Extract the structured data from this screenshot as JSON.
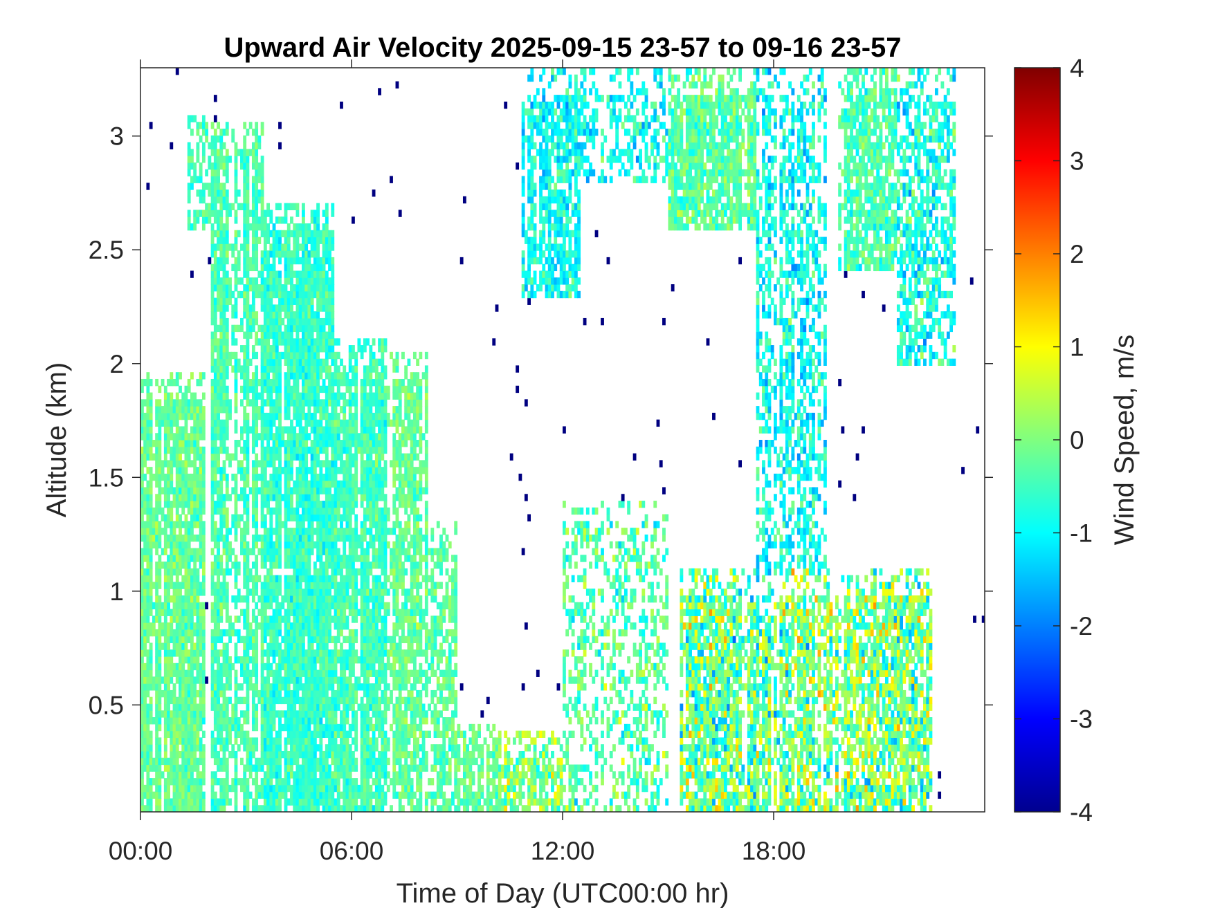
{
  "chart_data": {
    "type": "heatmap",
    "title": "Upward Air Velocity 2025-09-15 23-57 to 09-16 23-57",
    "xlabel": "Time of Day (UTC00:00 hr)",
    "ylabel": "Altitude (km)",
    "colorbar_label": "Wind Speed, m/s",
    "x_unit": "hours",
    "xlim": [
      0,
      24
    ],
    "ylim": [
      0.03,
      3.3
    ],
    "clim": [
      -4,
      4
    ],
    "colormap": "jet",
    "x_ticks": [
      {
        "value": 0,
        "label": "00:00"
      },
      {
        "value": 6,
        "label": "06:00"
      },
      {
        "value": 12,
        "label": "12:00"
      },
      {
        "value": 18,
        "label": "18:00"
      }
    ],
    "y_ticks": [
      {
        "value": 0.5,
        "label": "0.5"
      },
      {
        "value": 1,
        "label": "1"
      },
      {
        "value": 1.5,
        "label": "1.5"
      },
      {
        "value": 2,
        "label": "2"
      },
      {
        "value": 2.5,
        "label": "2.5"
      },
      {
        "value": 3,
        "label": "3"
      }
    ],
    "colorbar_ticks": [
      {
        "value": 4,
        "label": "4"
      },
      {
        "value": 3,
        "label": "3"
      },
      {
        "value": 2,
        "label": "2"
      },
      {
        "value": 1,
        "label": "1"
      },
      {
        "value": 0,
        "label": "0"
      },
      {
        "value": -1,
        "label": "-1"
      },
      {
        "value": -2,
        "label": "-2"
      },
      {
        "value": -3,
        "label": "-3"
      },
      {
        "value": -4,
        "label": "-4"
      }
    ],
    "grid": false,
    "regions": [
      {
        "hours": [
          0.0,
          1.8
        ],
        "alt_top_km": 1.95,
        "mean_ms": -0.2,
        "spread_ms": 0.5,
        "coverage": 0.9
      },
      {
        "hours": [
          1.3,
          2.0
        ],
        "alt_top_km": 3.1,
        "alt_bottom_km": 2.6,
        "mean_ms": -0.5,
        "spread_ms": 0.5,
        "coverage": 0.6
      },
      {
        "hours": [
          2.0,
          3.5
        ],
        "alt_top_km": 3.05,
        "mean_ms": -0.4,
        "spread_ms": 0.5,
        "coverage": 0.85
      },
      {
        "hours": [
          3.5,
          5.5
        ],
        "alt_top_km": 2.7,
        "mean_ms": -0.6,
        "spread_ms": 0.5,
        "coverage": 0.9
      },
      {
        "hours": [
          5.5,
          7.0
        ],
        "alt_top_km": 2.1,
        "mean_ms": -0.5,
        "spread_ms": 0.5,
        "coverage": 0.9
      },
      {
        "hours": [
          7.0,
          8.2
        ],
        "alt_top_km": 2.05,
        "mean_ms": -0.2,
        "spread_ms": 0.5,
        "coverage": 0.8
      },
      {
        "hours": [
          8.2,
          9.0
        ],
        "alt_top_km": 1.3,
        "mean_ms": -0.3,
        "spread_ms": 0.5,
        "coverage": 0.7
      },
      {
        "hours": [
          9.0,
          10.2
        ],
        "alt_top_km": 0.42,
        "mean_ms": -0.2,
        "spread_ms": 0.5,
        "coverage": 0.9
      },
      {
        "hours": [
          10.2,
          12.0
        ],
        "alt_top_km": 0.38,
        "mean_ms": 0.0,
        "spread_ms": 0.9,
        "coverage": 0.8
      },
      {
        "hours": [
          10.8,
          12.5
        ],
        "alt_top_km": 3.3,
        "alt_bottom_km": 2.3,
        "mean_ms": -0.9,
        "spread_ms": 0.7,
        "coverage": 0.75
      },
      {
        "hours": [
          12.0,
          15.0
        ],
        "alt_top_km": 1.4,
        "mean_ms": -0.3,
        "spread_ms": 0.8,
        "coverage": 0.4
      },
      {
        "hours": [
          12.5,
          15.0
        ],
        "alt_top_km": 3.3,
        "alt_bottom_km": 2.8,
        "mean_ms": -0.9,
        "spread_ms": 0.7,
        "coverage": 0.55
      },
      {
        "hours": [
          15.0,
          17.5
        ],
        "alt_top_km": 3.3,
        "alt_bottom_km": 2.6,
        "mean_ms": -0.3,
        "spread_ms": 0.6,
        "coverage": 0.85
      },
      {
        "hours": [
          15.3,
          18.0
        ],
        "alt_top_km": 1.1,
        "mean_ms": -0.2,
        "spread_ms": 1.3,
        "coverage": 0.85
      },
      {
        "hours": [
          17.5,
          19.5
        ],
        "alt_top_km": 3.3,
        "alt_bottom_km": 0.9,
        "mean_ms": -0.9,
        "spread_ms": 0.8,
        "coverage": 0.6
      },
      {
        "hours": [
          18.0,
          22.5
        ],
        "alt_top_km": 1.1,
        "mean_ms": 0.0,
        "spread_ms": 1.3,
        "coverage": 0.8
      },
      {
        "hours": [
          19.8,
          21.5
        ],
        "alt_top_km": 3.3,
        "alt_bottom_km": 2.4,
        "mean_ms": -0.4,
        "spread_ms": 0.6,
        "coverage": 0.8
      },
      {
        "hours": [
          21.5,
          23.2
        ],
        "alt_top_km": 3.3,
        "alt_bottom_km": 2.0,
        "mean_ms": -0.8,
        "spread_ms": 0.8,
        "coverage": 0.6
      }
    ]
  }
}
